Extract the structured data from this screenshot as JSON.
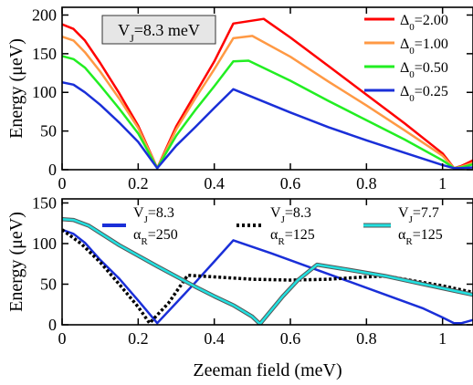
{
  "chart_data": [
    {
      "type": "line",
      "xlabel": "",
      "ylabel": "Energy (μeV)",
      "xlim": [
        0,
        1.08
      ],
      "ylim": [
        0,
        210
      ],
      "xticks": [
        "0",
        "0.2",
        "0.4",
        "0.6",
        "0.8",
        "1"
      ],
      "xtick_values": [
        0,
        0.2,
        0.4,
        0.6,
        0.8,
        1.0
      ],
      "yticks": [
        "0",
        "50",
        "100",
        "150",
        "200"
      ],
      "ytick_values": [
        0,
        50,
        100,
        150,
        200
      ],
      "annotation": "V_J=8.3 meV",
      "legend_position": "top-right",
      "series": [
        {
          "name": "Δ0=2.00",
          "color": "#ff0000",
          "x": [
            0,
            0.03,
            0.06,
            0.1,
            0.15,
            0.2,
            0.25,
            0.3,
            0.35,
            0.4,
            0.45,
            0.53,
            0.6,
            0.7,
            0.8,
            0.9,
            1.0,
            1.03,
            1.05,
            1.08
          ],
          "y": [
            188,
            182,
            167,
            138,
            99,
            57,
            2,
            56,
            98,
            140,
            189,
            195,
            171,
            134,
            97,
            60,
            21,
            2,
            5,
            12
          ]
        },
        {
          "name": "Δ0=1.00",
          "color": "#ff9944",
          "x": [
            0,
            0.03,
            0.06,
            0.1,
            0.15,
            0.2,
            0.25,
            0.3,
            0.35,
            0.4,
            0.45,
            0.5,
            0.6,
            0.7,
            0.8,
            0.9,
            1.0,
            1.03,
            1.05,
            1.08
          ],
          "y": [
            172,
            167,
            152,
            127,
            92,
            54,
            2,
            52,
            92,
            130,
            170,
            173,
            146,
            114,
            83,
            51,
            18,
            2,
            4,
            9
          ]
        },
        {
          "name": "Δ0=0.50",
          "color": "#22ee22",
          "x": [
            0,
            0.03,
            0.06,
            0.1,
            0.15,
            0.2,
            0.25,
            0.3,
            0.35,
            0.4,
            0.45,
            0.49,
            0.6,
            0.7,
            0.8,
            0.9,
            1.0,
            1.03,
            1.05,
            1.08
          ],
          "y": [
            147,
            143,
            132,
            109,
            79,
            47,
            2,
            44,
            77,
            108,
            140,
            141,
            115,
            89,
            64,
            39,
            12,
            2,
            3,
            7
          ]
        },
        {
          "name": "Δ0=0.25",
          "color": "#1a2fd8",
          "x": [
            0,
            0.03,
            0.06,
            0.1,
            0.15,
            0.2,
            0.25,
            0.3,
            0.35,
            0.4,
            0.45,
            0.6,
            0.7,
            0.8,
            0.9,
            1.0,
            1.03,
            1.05,
            1.08
          ],
          "y": [
            113,
            110,
            100,
            84,
            61,
            36,
            2,
            31,
            55,
            80,
            104,
            74,
            55,
            38,
            22,
            6,
            2,
            2,
            3
          ]
        }
      ]
    },
    {
      "type": "line",
      "xlabel": "Zeeman field (meV)",
      "ylabel": "Energy (μeV)",
      "xlim": [
        0,
        1.08
      ],
      "ylim": [
        0,
        155
      ],
      "xticks": [
        "0",
        "0.2",
        "0.4",
        "0.6",
        "0.8",
        "1"
      ],
      "xtick_values": [
        0,
        0.2,
        0.4,
        0.6,
        0.8,
        1.0
      ],
      "yticks": [
        "0",
        "50",
        "100",
        "150"
      ],
      "ytick_values": [
        0,
        50,
        100,
        150
      ],
      "legend_position": "top",
      "series": [
        {
          "name_vj": "V_J=8.3",
          "name_alpha": "α_R=250",
          "color": "#1a2fd8",
          "style": "solid",
          "x": [
            0,
            0.03,
            0.06,
            0.1,
            0.15,
            0.2,
            0.25,
            0.3,
            0.35,
            0.4,
            0.45,
            0.55,
            0.65,
            0.75,
            0.85,
            0.95,
            1.0,
            1.03,
            1.05,
            1.08
          ],
          "y": [
            117,
            112,
            101,
            80,
            57,
            30,
            2,
            27,
            52,
            78,
            104,
            88,
            71,
            54,
            37,
            20,
            9,
            2,
            2,
            6
          ]
        },
        {
          "name_vj": "V_J=8.3",
          "name_alpha": "α_R=125",
          "color": "#000000",
          "style": "dotted",
          "x": [
            0,
            0.05,
            0.1,
            0.15,
            0.2,
            0.23,
            0.28,
            0.33,
            0.4,
            0.5,
            0.6,
            0.7,
            0.8,
            0.85,
            0.9,
            1.0,
            1.08
          ],
          "y": [
            117,
            100,
            77,
            50,
            22,
            2,
            27,
            61,
            59,
            56,
            55,
            56,
            59,
            60,
            56,
            48,
            40
          ]
        },
        {
          "name_vj": "V_J=7.7",
          "name_alpha": "α_R=125",
          "color": "#22e0e0",
          "style": "solid",
          "x": [
            0,
            0.03,
            0.07,
            0.15,
            0.25,
            0.35,
            0.4,
            0.45,
            0.5,
            0.52,
            0.58,
            0.62,
            0.67,
            0.75,
            0.85,
            0.95,
            1.08
          ],
          "y": [
            130,
            129,
            122,
            98,
            72,
            47,
            35,
            24,
            10,
            1,
            35,
            55,
            74,
            68,
            60,
            50,
            37
          ]
        }
      ]
    }
  ]
}
